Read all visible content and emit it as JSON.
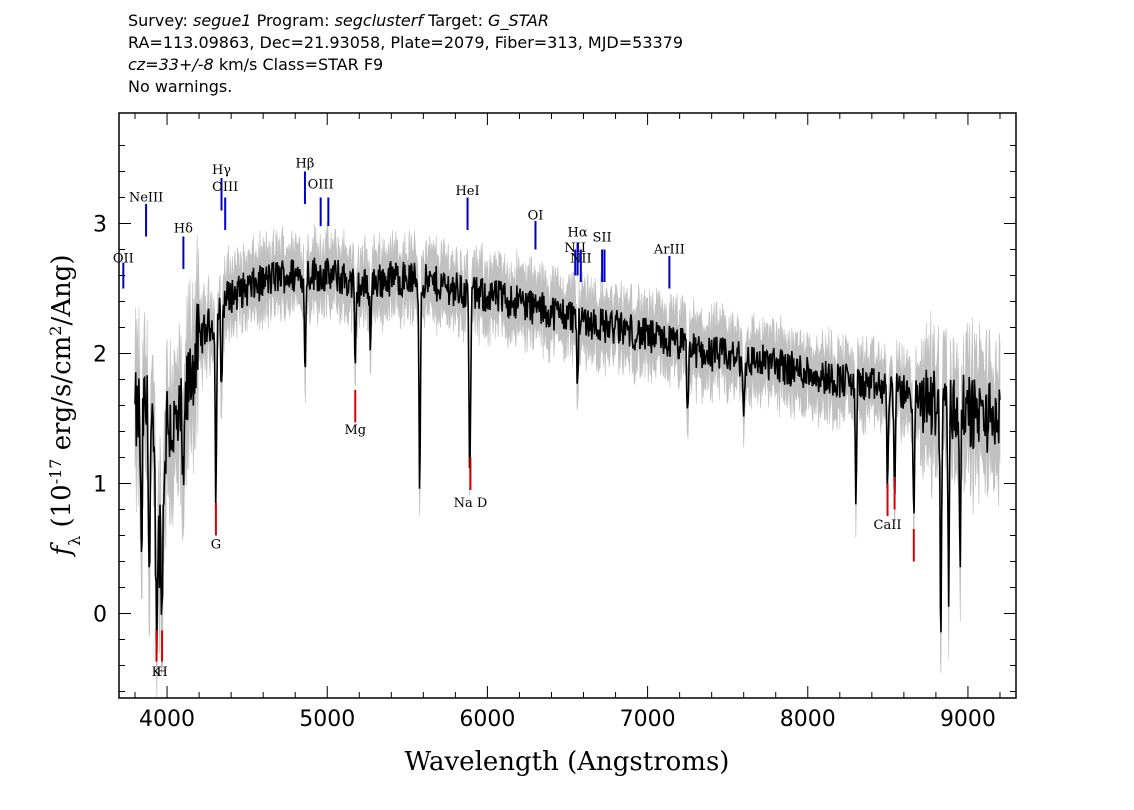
{
  "header": {
    "survey_label": "Survey:",
    "survey": "segue1",
    "program_label": "Program:",
    "program": "segclusterf",
    "target_label": "Target:",
    "target": "G_STAR",
    "coords": "RA=113.09863, Dec=21.93058, Plate=2079, Fiber=313, MJD=53379",
    "cz": "cz=33+/-8",
    "cz_unit": "km/s",
    "class": "Class=STAR F9",
    "warnings": "No warnings."
  },
  "chart_data": {
    "type": "line",
    "xlabel": "Wavelength (Angstroms)",
    "ylabel": "f_λ (10^-17 erg/s/cm^2/Ang)",
    "xlim": [
      3700,
      9300
    ],
    "ylim": [
      -0.65,
      3.85
    ],
    "x_ticks": [
      4000,
      5000,
      6000,
      7000,
      8000,
      9000
    ],
    "y_ticks": [
      0,
      1,
      2,
      3
    ],
    "grid": false,
    "colors": {
      "flux": "#000000",
      "error_band": "#c0c0c0",
      "emission": "#0000cc",
      "absorption": "#dd0000"
    },
    "continuum": [
      [
        3800,
        1.5
      ],
      [
        3850,
        1.6
      ],
      [
        3900,
        1.45
      ],
      [
        3950,
        0.5
      ],
      [
        4000,
        1.5
      ],
      [
        4050,
        1.4
      ],
      [
        4100,
        1.5
      ],
      [
        4150,
        1.85
      ],
      [
        4200,
        2.1
      ],
      [
        4250,
        2.2
      ],
      [
        4300,
        2.25
      ],
      [
        4350,
        2.4
      ],
      [
        4400,
        2.45
      ],
      [
        4500,
        2.5
      ],
      [
        4600,
        2.55
      ],
      [
        4700,
        2.6
      ],
      [
        4800,
        2.6
      ],
      [
        4900,
        2.62
      ],
      [
        5000,
        2.6
      ],
      [
        5100,
        2.58
      ],
      [
        5200,
        2.5
      ],
      [
        5300,
        2.55
      ],
      [
        5400,
        2.58
      ],
      [
        5500,
        2.58
      ],
      [
        5600,
        2.55
      ],
      [
        5700,
        2.53
      ],
      [
        5800,
        2.5
      ],
      [
        5900,
        2.45
      ],
      [
        6000,
        2.45
      ],
      [
        6100,
        2.42
      ],
      [
        6200,
        2.4
      ],
      [
        6300,
        2.35
      ],
      [
        6400,
        2.32
      ],
      [
        6500,
        2.3
      ],
      [
        6600,
        2.27
      ],
      [
        6700,
        2.22
      ],
      [
        6800,
        2.2
      ],
      [
        6900,
        2.17
      ],
      [
        7000,
        2.13
      ],
      [
        7100,
        2.1
      ],
      [
        7200,
        2.07
      ],
      [
        7300,
        2.02
      ],
      [
        7400,
        2.0
      ],
      [
        7500,
        1.98
      ],
      [
        7600,
        1.95
      ],
      [
        7700,
        1.94
      ],
      [
        7800,
        1.92
      ],
      [
        7900,
        1.88
      ],
      [
        8000,
        1.86
      ],
      [
        8100,
        1.82
      ],
      [
        8200,
        1.8
      ],
      [
        8300,
        1.78
      ],
      [
        8400,
        1.75
      ],
      [
        8500,
        1.72
      ],
      [
        8600,
        1.7
      ],
      [
        8700,
        1.65
      ],
      [
        8800,
        1.62
      ],
      [
        8900,
        1.58
      ],
      [
        9000,
        1.55
      ],
      [
        9100,
        1.52
      ],
      [
        9200,
        1.5
      ]
    ],
    "absorption_features": [
      [
        3840,
        0.25
      ],
      [
        3890,
        0.3
      ],
      [
        3934,
        -0.1
      ],
      [
        3969,
        -0.05
      ],
      [
        4102,
        0.8
      ],
      [
        4305,
        0.9
      ],
      [
        4340,
        1.7
      ],
      [
        4861,
        1.85
      ],
      [
        5175,
        1.85
      ],
      [
        5270,
        2.1
      ],
      [
        5577,
        0.95
      ],
      [
        5890,
        0.95
      ],
      [
        6563,
        1.75
      ],
      [
        7250,
        1.5
      ],
      [
        7600,
        1.45
      ],
      [
        8300,
        0.9
      ],
      [
        8498,
        1.0
      ],
      [
        8542,
        0.95
      ],
      [
        8662,
        0.7
      ],
      [
        8830,
        -0.2
      ],
      [
        8880,
        0.3
      ],
      [
        8950,
        0.5
      ]
    ],
    "emission_lines": [
      {
        "label": "OII",
        "x": 3727,
        "y1": 2.5,
        "y2": 2.7,
        "label_y": 2.7
      },
      {
        "label": "NeIII",
        "x": 3869,
        "y1": 2.9,
        "y2": 3.15,
        "label_y": 3.17
      },
      {
        "label": "Hδ",
        "x": 4102,
        "y1": 2.65,
        "y2": 2.9,
        "label_y": 2.93
      },
      {
        "label": "Hγ",
        "x": 4340,
        "y1": 3.1,
        "y2": 3.35,
        "label_y": 3.38
      },
      {
        "label": "OIII",
        "x": 4363,
        "y1": 2.95,
        "y2": 3.2,
        "label_y": 3.25
      },
      {
        "label": "Hβ",
        "x": 4861,
        "y1": 3.15,
        "y2": 3.4,
        "label_y": 3.43
      },
      {
        "label": "OIII",
        "x": 4959,
        "y1": 2.98,
        "y2": 3.2,
        "label_y": 3.27
      },
      {
        "label": "",
        "x": 5007,
        "y1": 2.98,
        "y2": 3.2,
        "label_y": 3.27
      },
      {
        "label": "HeI",
        "x": 5876,
        "y1": 2.95,
        "y2": 3.2,
        "label_y": 3.22
      },
      {
        "label": "OI",
        "x": 6300,
        "y1": 2.8,
        "y2": 3.02,
        "label_y": 3.03
      },
      {
        "label": "NII",
        "x": 6548,
        "y1": 2.6,
        "y2": 2.8,
        "label_y": 2.78
      },
      {
        "label": "Hα",
        "x": 6563,
        "y1": 2.6,
        "y2": 2.85,
        "label_y": 2.9
      },
      {
        "label": "NII",
        "x": 6583,
        "y1": 2.55,
        "y2": 2.8,
        "label_y": 2.7
      },
      {
        "label": "SII",
        "x": 6716,
        "y1": 2.55,
        "y2": 2.8,
        "label_y": 2.86
      },
      {
        "label": "",
        "x": 6731,
        "y1": 2.55,
        "y2": 2.8,
        "label_y": 2.86
      },
      {
        "label": "ArIII",
        "x": 7136,
        "y1": 2.5,
        "y2": 2.75,
        "label_y": 2.77
      }
    ],
    "absorption_lines": [
      {
        "label": "K",
        "x": 3934,
        "y1": -0.37,
        "y2": -0.13,
        "label_y": -0.48
      },
      {
        "label": "H",
        "x": 3969,
        "y1": -0.37,
        "y2": -0.13,
        "label_y": -0.48
      },
      {
        "label": "G",
        "x": 4305,
        "y1": 0.6,
        "y2": 0.85,
        "label_y": 0.5
      },
      {
        "label": "Mg",
        "x": 5175,
        "y1": 1.47,
        "y2": 1.72,
        "label_y": 1.38
      },
      {
        "label": "Na D",
        "x": 5894,
        "y1": 0.95,
        "y2": 1.2,
        "label_y": 0.82
      },
      {
        "label": "CaII",
        "x": 8498,
        "y1": 0.75,
        "y2": 1.0,
        "label_y": 0.65
      },
      {
        "label": "",
        "x": 8542,
        "y1": 0.8,
        "y2": 1.05,
        "label_y": 0.65
      },
      {
        "label": "",
        "x": 8662,
        "y1": 0.4,
        "y2": 0.65,
        "label_y": 0.65
      }
    ]
  }
}
